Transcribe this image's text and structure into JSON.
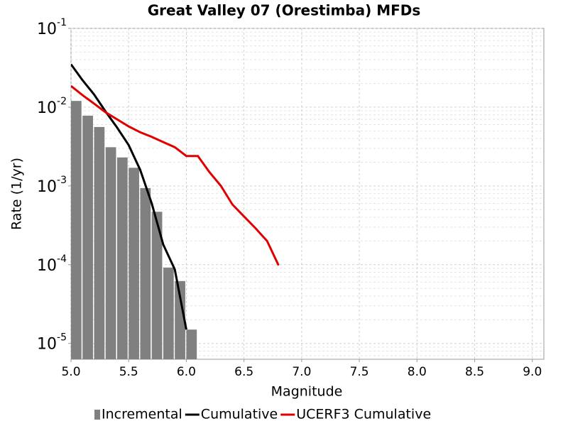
{
  "chart_data": {
    "type": "line",
    "title": "Great Valley 07 (Orestimba) MFDs",
    "x_label": "Magnitude",
    "y_label": "Rate (1/yr)",
    "log_y": true,
    "grid": true,
    "legend": "bottom",
    "xlim": [
      5.0,
      9.1
    ],
    "xticks": [
      {
        "value": 5,
        "label": "5.0"
      },
      {
        "value": 5.5,
        "label": "5.5"
      },
      {
        "value": 6,
        "label": "6.0"
      },
      {
        "value": 6.5,
        "label": "6.5"
      },
      {
        "value": 7,
        "label": "7.0"
      },
      {
        "value": 7.5,
        "label": "7.5"
      },
      {
        "value": 8,
        "label": "8.0"
      },
      {
        "value": 8.5,
        "label": "8.5"
      },
      {
        "value": 9,
        "label": "9.0"
      }
    ],
    "ylim": [
      6.3e-06,
      0.1
    ],
    "yticks": [
      {
        "value": 0.1,
        "label": "10",
        "exponent": "-1"
      },
      {
        "value": 0.01,
        "label": "10",
        "exponent": "-2"
      },
      {
        "value": 0.001,
        "label": "10",
        "exponent": "-3"
      },
      {
        "value": 0.0001,
        "label": "10",
        "exponent": "-4"
      },
      {
        "value": 1e-05,
        "label": "10",
        "exponent": "-5"
      }
    ],
    "series": [
      {
        "name": "Incremental",
        "type": "bar",
        "color": "#808080",
        "bins": [
          5.0,
          5.1,
          5.2,
          5.3,
          5.4,
          5.5,
          5.6,
          5.7,
          5.8,
          5.9,
          6.0,
          6.1
        ],
        "values": [
          0.012,
          0.0078,
          0.0056,
          0.0031,
          0.0023,
          0.0017,
          0.00094,
          0.00047,
          9.2e-05,
          6.2e-05,
          1.5e-05
        ]
      },
      {
        "name": "Cumulative",
        "type": "line",
        "color": "#000000",
        "x": [
          5.0,
          5.1,
          5.2,
          5.3,
          5.4,
          5.5,
          5.6,
          5.7,
          5.8,
          5.9,
          6.0
        ],
        "values": [
          0.035,
          0.022,
          0.0145,
          0.0088,
          0.0055,
          0.0033,
          0.0016,
          0.0006,
          0.00018,
          8.7e-05,
          1.5e-05
        ]
      },
      {
        "name": "UCERF3 Cumulative",
        "type": "line",
        "color": "#e00000",
        "x": [
          5.0,
          5.1,
          5.2,
          5.3,
          5.4,
          5.5,
          5.6,
          5.7,
          5.8,
          5.9,
          6.0,
          6.1,
          6.2,
          6.3,
          6.4,
          6.5,
          6.6,
          6.7,
          6.8
        ],
        "values": [
          0.0186,
          0.0142,
          0.0111,
          0.0086,
          0.007,
          0.0057,
          0.0048,
          0.0042,
          0.0036,
          0.0031,
          0.0024,
          0.0024,
          0.0015,
          0.001,
          0.00058,
          0.00041,
          0.00029,
          0.0002,
          9.8e-05
        ]
      }
    ]
  }
}
